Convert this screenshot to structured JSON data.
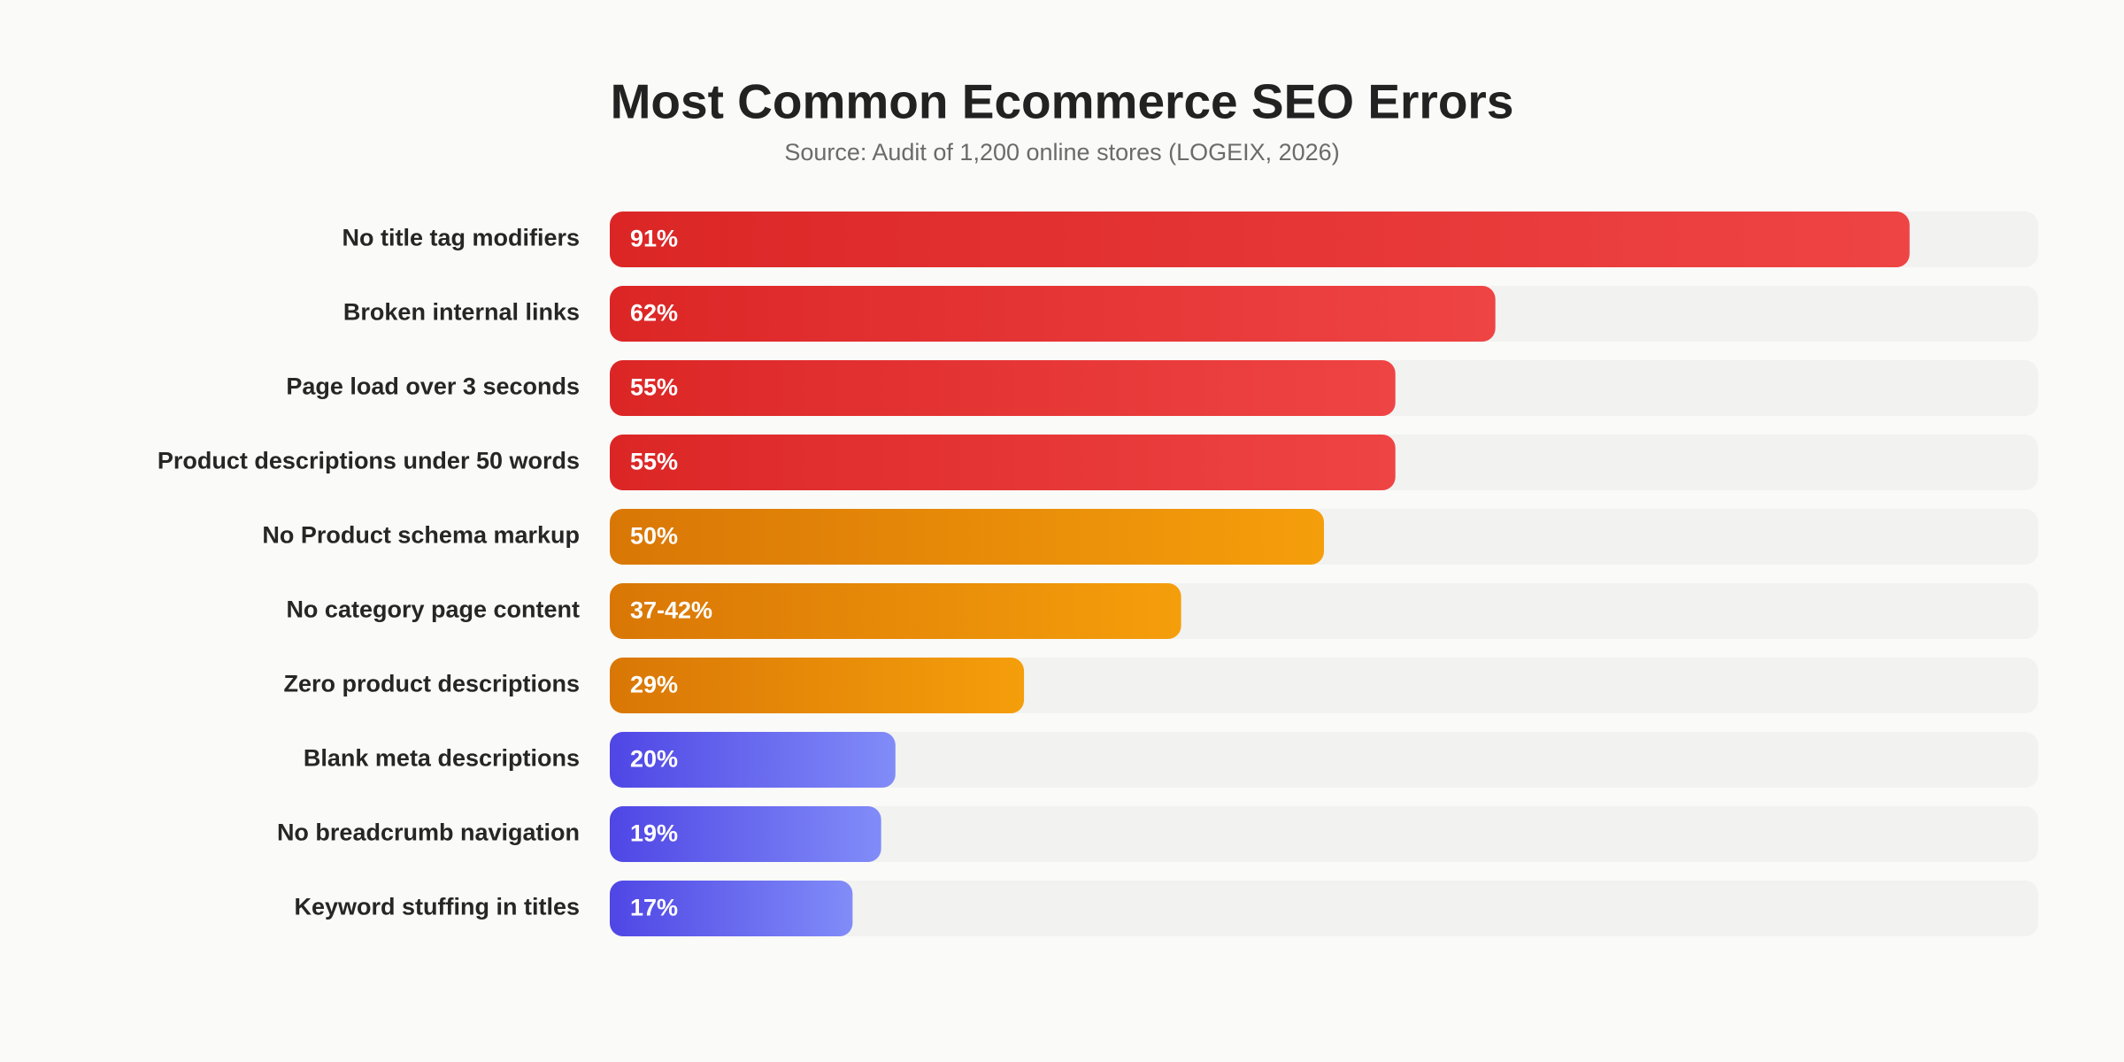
{
  "chart_data": {
    "type": "bar",
    "orientation": "horizontal",
    "title": "Most Common Ecommerce SEO Errors",
    "subtitle": "Source: Audit of 1,200 online stores (LOGEIX, 2026)",
    "categories": [
      "No title tag modifiers",
      "Broken internal links",
      "Page load over 3 seconds",
      "Product descriptions under 50 words",
      "No Product schema markup",
      "No category page content",
      "Zero product descriptions",
      "Blank meta descriptions",
      "No breadcrumb navigation",
      "Keyword stuffing in titles"
    ],
    "values": [
      91,
      62,
      55,
      55,
      50,
      40,
      29,
      20,
      19,
      17
    ],
    "value_labels": [
      "91%",
      "62%",
      "55%",
      "55%",
      "50%",
      "37-42%",
      "29%",
      "20%",
      "19%",
      "17%"
    ],
    "colors": [
      [
        "#dc2626",
        "#ef4444"
      ],
      [
        "#dc2626",
        "#ef4444"
      ],
      [
        "#dc2626",
        "#ef4444"
      ],
      [
        "#dc2626",
        "#ef4444"
      ],
      [
        "#d97706",
        "#f59e0b"
      ],
      [
        "#d97706",
        "#f59e0b"
      ],
      [
        "#d97706",
        "#f59e0b"
      ],
      [
        "#4f46e5",
        "#818cf8"
      ],
      [
        "#4f46e5",
        "#818cf8"
      ],
      [
        "#4f46e5",
        "#818cf8"
      ]
    ],
    "track_color": "#f2f2f0",
    "xlim": [
      0,
      100
    ]
  }
}
